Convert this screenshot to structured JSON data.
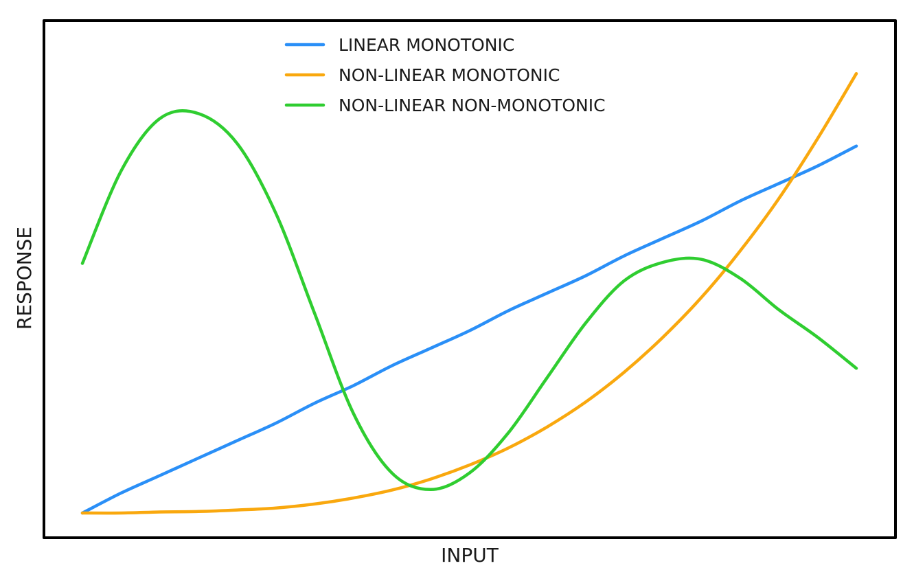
{
  "chart_data": {
    "type": "line",
    "title": "",
    "xlabel": "INPUT",
    "ylabel": "RESPONSE",
    "xlim": [
      0,
      1
    ],
    "ylim": [
      0,
      1
    ],
    "grid": false,
    "ticks": false,
    "legend_position": "top-center",
    "x": [
      0,
      0.05,
      0.1,
      0.15,
      0.2,
      0.25,
      0.3,
      0.35,
      0.4,
      0.45,
      0.5,
      0.55,
      0.6,
      0.65,
      0.7,
      0.75,
      0.8,
      0.85,
      0.9,
      0.95,
      1.0
    ],
    "series": [
      {
        "name": "LINEAR MONOTONIC",
        "color": "#2a8ff7",
        "values": [
          0.0,
          0.04,
          0.075,
          0.11,
          0.145,
          0.18,
          0.22,
          0.255,
          0.295,
          0.33,
          0.365,
          0.405,
          0.44,
          0.475,
          0.515,
          0.55,
          0.585,
          0.625,
          0.66,
          0.695,
          0.735
        ]
      },
      {
        "name": "NON-LINEAR MONOTONIC",
        "color": "#f9a80e",
        "values": [
          0.0,
          0.0,
          0.002,
          0.003,
          0.006,
          0.01,
          0.018,
          0.03,
          0.046,
          0.068,
          0.096,
          0.13,
          0.172,
          0.222,
          0.282,
          0.352,
          0.432,
          0.525,
          0.63,
          0.75,
          0.88
        ]
      },
      {
        "name": "NON-LINEAR NON-MONOTONIC",
        "color": "#2fcd30",
        "values": [
          0.5,
          0.685,
          0.79,
          0.8,
          0.74,
          0.6,
          0.4,
          0.2,
          0.08,
          0.047,
          0.08,
          0.16,
          0.27,
          0.38,
          0.465,
          0.502,
          0.508,
          0.47,
          0.407,
          0.352,
          0.29
        ]
      }
    ]
  }
}
